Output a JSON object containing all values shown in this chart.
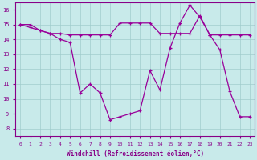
{
  "line1_x": [
    0,
    1,
    2,
    3,
    4,
    5,
    6,
    7,
    8,
    9,
    10,
    11,
    12,
    13,
    14,
    15,
    16,
    17,
    18,
    19,
    20,
    21,
    22,
    23
  ],
  "line1_y": [
    15.0,
    14.8,
    14.6,
    14.4,
    14.0,
    13.8,
    10.4,
    11.0,
    10.4,
    8.6,
    8.8,
    9.0,
    9.2,
    11.9,
    10.6,
    13.4,
    15.1,
    16.3,
    15.5,
    14.3,
    13.3,
    10.5,
    8.8,
    8.8
  ],
  "line2_x": [
    0,
    1,
    2,
    3,
    4,
    5,
    6,
    7,
    8,
    9,
    10,
    11,
    12,
    13,
    14,
    15,
    16,
    17,
    18,
    19,
    20,
    21,
    22,
    23
  ],
  "line2_y": [
    15.0,
    15.0,
    14.6,
    14.4,
    14.4,
    14.3,
    14.3,
    14.3,
    14.3,
    14.3,
    15.1,
    15.1,
    15.1,
    15.1,
    14.4,
    14.4,
    14.4,
    14.4,
    15.6,
    14.3,
    14.3,
    14.3,
    14.3,
    14.3
  ],
  "line_color": "#990099",
  "bg_color": "#c8eaea",
  "grid_color": "#a0cccc",
  "xlim": [
    -0.5,
    23.5
  ],
  "ylim": [
    7.5,
    16.5
  ],
  "yticks": [
    8,
    9,
    10,
    11,
    12,
    13,
    14,
    15,
    16
  ],
  "xticks": [
    0,
    1,
    2,
    3,
    4,
    5,
    6,
    7,
    8,
    9,
    10,
    11,
    12,
    13,
    14,
    15,
    16,
    17,
    18,
    19,
    20,
    21,
    22,
    23
  ],
  "xlabel": "Windchill (Refroidissement éolien,°C)",
  "axis_color": "#880088"
}
